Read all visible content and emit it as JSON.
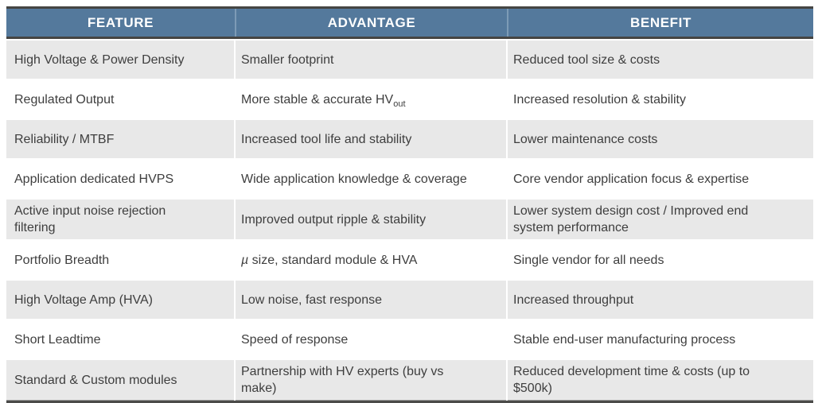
{
  "table": {
    "headers": {
      "feature": "FEATURE",
      "advantage": "ADVANTAGE",
      "benefit": "BENEFIT"
    },
    "rows": [
      {
        "feature": "High Voltage & Power Density",
        "advantage": "Smaller footprint",
        "benefit": "Reduced tool size & costs"
      },
      {
        "feature": "Regulated Output",
        "advantage": "More stable & accurate HV",
        "advantage_sub": "out",
        "benefit": "Increased resolution & stability"
      },
      {
        "feature": "Reliability / MTBF",
        "advantage": "Increased tool life and stability",
        "benefit": "Lower maintenance costs"
      },
      {
        "feature": "Application dedicated HVPS",
        "advantage": "Wide application knowledge & coverage",
        "benefit": "Core vendor application focus & expertise"
      },
      {
        "feature": "Active input noise rejection\nfiltering",
        "advantage": "Improved output ripple & stability",
        "benefit": "Lower system design cost / Improved end\nsystem performance"
      },
      {
        "feature": "Portfolio Breadth",
        "advantage_prefix": "µ",
        "advantage": " size, standard module & HVA",
        "benefit": "Single vendor for all needs"
      },
      {
        "feature": "High Voltage Amp (HVA)",
        "advantage": "Low noise, fast response",
        "benefit": "Increased throughput"
      },
      {
        "feature": "Short Leadtime",
        "advantage": "Speed of response",
        "benefit": "Stable end-user manufacturing process"
      },
      {
        "feature": "Standard & Custom modules",
        "advantage": "Partnership with HV experts (buy vs\nmake)",
        "benefit": "Reduced development time & costs (up to\n$500k)"
      }
    ],
    "colors": {
      "header_background": "#54799c",
      "header_text": "#ffffff",
      "header_divider": "#7d9bb6",
      "dark_rule": "#454543",
      "bottom_rule": "#4b4b49",
      "row_alt_background": "#e8e8e8",
      "row_background": "#ffffff",
      "body_text": "#3e3e3e"
    }
  }
}
